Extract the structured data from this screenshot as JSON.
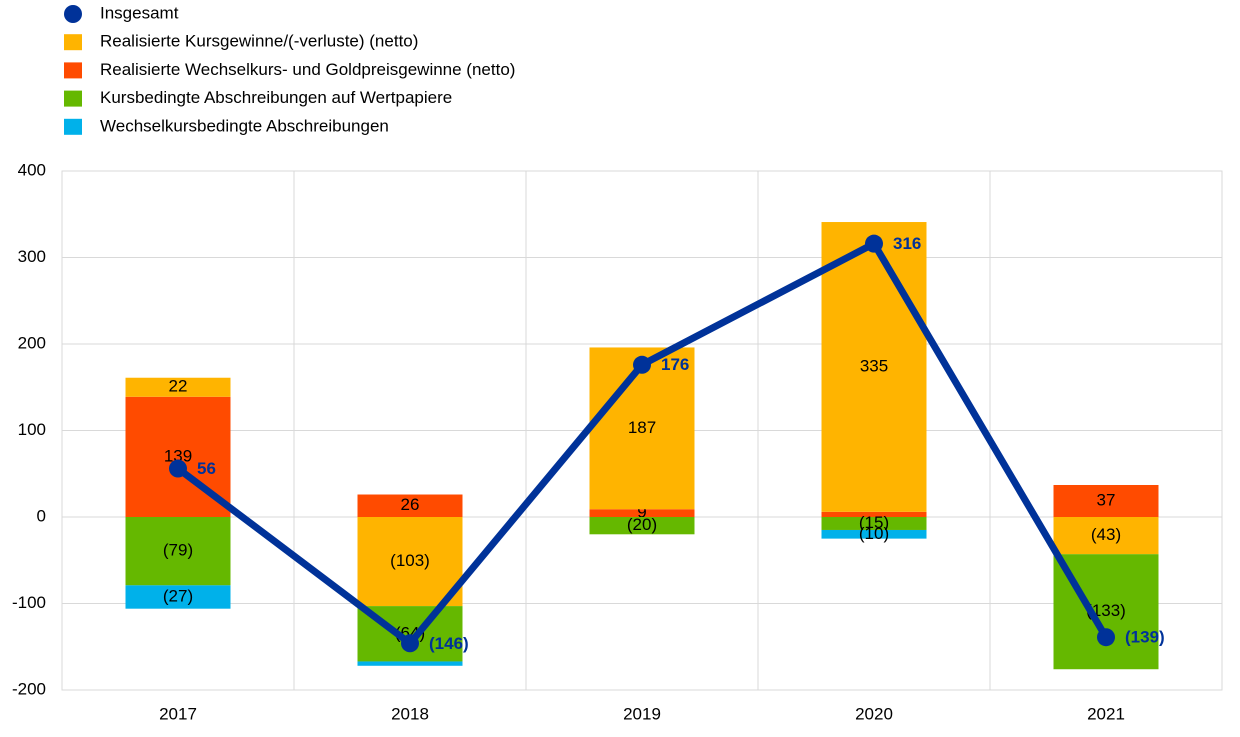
{
  "chart_data": {
    "type": "bar",
    "categories": [
      "2017",
      "2018",
      "2019",
      "2020",
      "2021"
    ],
    "series": [
      {
        "name": "Realisierte Kursgewinne/(-verluste) (netto)",
        "color": "#ffb400",
        "values": [
          22,
          -103,
          187,
          335,
          -43
        ],
        "value_labels": [
          "22",
          "(103)",
          "187",
          "335",
          "(43)"
        ]
      },
      {
        "name": "Realisierte Wechselkurs- und Goldpreisgewinne (netto)",
        "color": "#ff4b00",
        "values": [
          139,
          26,
          9,
          6,
          37
        ],
        "value_labels": [
          "139",
          "26",
          "9",
          null,
          "37"
        ]
      },
      {
        "name": "Kursbedingte Abschreibungen auf Wertpapiere",
        "color": "#65b800",
        "values": [
          -79,
          -64,
          -20,
          -15,
          -133
        ],
        "value_labels": [
          "(79)",
          "(64)",
          "(20)",
          "(15)",
          "(133)"
        ]
      },
      {
        "name": "Wechselkursbedingte Abschreibungen",
        "color": "#00b1ea",
        "values": [
          -27,
          -5,
          0,
          -10,
          0
        ],
        "value_labels": [
          "(27)",
          null,
          null,
          "(10)",
          null
        ]
      }
    ],
    "line": {
      "name": "Insgesamt",
      "color": "#003299",
      "values": [
        56,
        -146,
        176,
        316,
        -139
      ],
      "value_labels": [
        "56",
        "(146)",
        "176",
        "316",
        "(139)"
      ]
    },
    "ylim": [
      -200,
      400
    ],
    "yticks": [
      -200,
      -100,
      0,
      100,
      200,
      300,
      400
    ],
    "grid": true,
    "legend": "top-left"
  }
}
